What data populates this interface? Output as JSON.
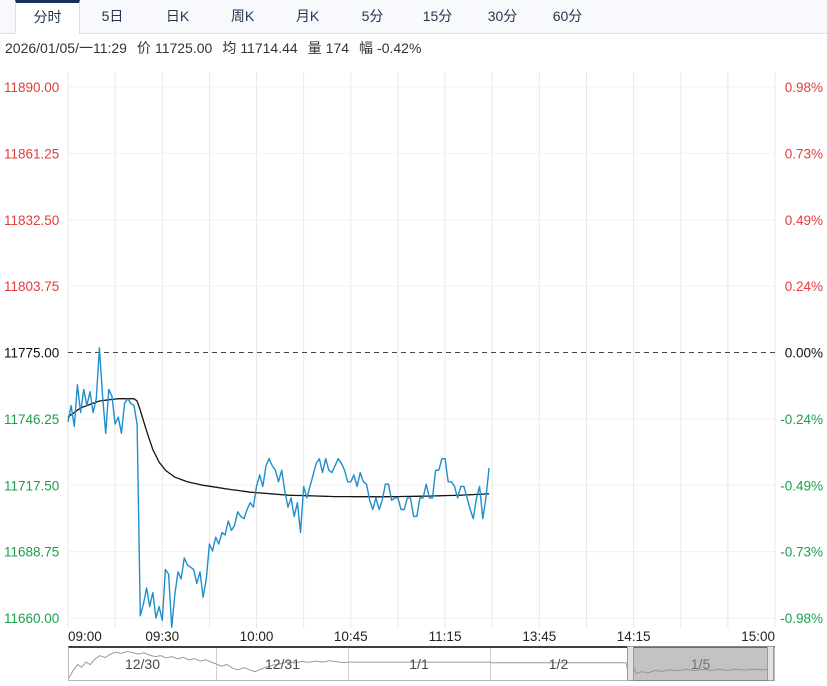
{
  "tabs": {
    "items": [
      {
        "label": "分时",
        "name": "tab-intraday",
        "active": true
      },
      {
        "label": "5日",
        "name": "tab-5day",
        "active": false
      },
      {
        "label": "日K",
        "name": "tab-daily-k",
        "active": false
      },
      {
        "label": "周K",
        "name": "tab-weekly-k",
        "active": false
      },
      {
        "label": "月K",
        "name": "tab-monthly-k",
        "active": false
      },
      {
        "label": "5分",
        "name": "tab-5min",
        "active": false
      },
      {
        "label": "15分",
        "name": "tab-15min",
        "active": false
      },
      {
        "label": "30分",
        "name": "tab-30min",
        "active": false
      },
      {
        "label": "60分",
        "name": "tab-60min",
        "active": false
      }
    ]
  },
  "info": {
    "datetime": "2026/01/05/一11:29",
    "fields": [
      {
        "label": "价",
        "value": "11725.00"
      },
      {
        "label": "均",
        "value": "11714.44"
      },
      {
        "label": "量",
        "value": "174"
      },
      {
        "label": "幅",
        "value": "-0.42%"
      }
    ]
  },
  "chart_data": {
    "type": "line",
    "title": "",
    "x_axis": {
      "session_minutes": 225,
      "minutes_per_point": 1,
      "gridline_every_min": 15,
      "labels": [
        {
          "text": "09:00",
          "min": 0
        },
        {
          "text": "09:30",
          "min": 30
        },
        {
          "text": "10:00",
          "min": 60
        },
        {
          "text": "10:45",
          "min": 90
        },
        {
          "text": "11:15",
          "min": 120
        },
        {
          "text": "13:45",
          "min": 150
        },
        {
          "text": "14:15",
          "min": 180
        },
        {
          "text": "15:00",
          "min": 225
        }
      ]
    },
    "y_axis": {
      "max": 11890.0,
      "min": 11660.0,
      "base": 11775.0,
      "left_labels": [
        "11890.00",
        "11861.25",
        "11832.50",
        "11803.75",
        "11775.00",
        "11746.25",
        "11717.50",
        "11688.75",
        "11660.00"
      ],
      "right_labels": [
        "0.98%",
        "0.73%",
        "0.49%",
        "0.24%",
        "0.00%",
        "-0.24%",
        "-0.49%",
        "-0.73%",
        "-0.98%"
      ],
      "up_color": "#e23c3c",
      "base_color": "#111111",
      "down_color": "#1aa14b"
    },
    "series": [
      {
        "name": "price",
        "color": "#1f8ecb",
        "values": [
          11745,
          11752,
          11743,
          11761,
          11749,
          11759,
          11752,
          11758,
          11749,
          11755,
          11777,
          11756,
          11740,
          11759,
          11756,
          11744,
          11747,
          11740,
          11753,
          11755,
          11753,
          11752,
          11744,
          11661,
          11666,
          11673,
          11665,
          11671,
          11660,
          11665,
          11659,
          11681,
          11679,
          11656,
          11670,
          11680,
          11677,
          11686,
          11683,
          11682,
          11681,
          11675,
          11680,
          11669,
          11677,
          11692,
          11689,
          11695,
          11692,
          11697,
          11696,
          11702,
          11698,
          11700,
          11706,
          11704,
          11703,
          11707,
          11710,
          11708,
          11717,
          11722,
          11717,
          11726,
          11729,
          11726,
          11724,
          11719,
          11724,
          11715,
          11708,
          11712,
          11704,
          11710,
          11697,
          11717,
          11712,
          11717,
          11722,
          11727,
          11729,
          11723,
          11729,
          11724,
          11723,
          11726,
          11729,
          11727,
          11724,
          11719,
          11719,
          11722,
          11717,
          11723,
          11719,
          11718,
          11711,
          11707,
          11712,
          11707,
          11711,
          11718,
          11718,
          11711,
          11712,
          11712,
          11707,
          11707,
          11712,
          11712,
          11704,
          11704,
          11712,
          11712,
          11718,
          11712,
          11712,
          11724,
          11724,
          11729,
          11729,
          11719,
          11719,
          11717,
          11712,
          11717,
          11717,
          11712,
          11707,
          11703,
          11712,
          11717,
          11703,
          11712,
          11725
        ]
      },
      {
        "name": "avg",
        "color": "#141414",
        "keypoints": [
          [
            0,
            11747
          ],
          [
            4,
            11751
          ],
          [
            10,
            11754
          ],
          [
            16,
            11755
          ],
          [
            21,
            11755
          ],
          [
            22,
            11754
          ],
          [
            23,
            11750
          ],
          [
            25,
            11741
          ],
          [
            27,
            11733
          ],
          [
            29,
            11727.5
          ],
          [
            31,
            11724
          ],
          [
            34,
            11721
          ],
          [
            38,
            11719
          ],
          [
            43,
            11717.5
          ],
          [
            50,
            11716
          ],
          [
            58,
            11714.5
          ],
          [
            70,
            11713.2
          ],
          [
            85,
            11712.6
          ],
          [
            100,
            11712.5
          ],
          [
            115,
            11712.8
          ],
          [
            125,
            11713.2
          ],
          [
            134,
            11713.8
          ]
        ]
      }
    ]
  },
  "navigator": {
    "sections": [
      {
        "label": "12/30",
        "start": 0.0,
        "end": 0.208,
        "selected": false
      },
      {
        "label": "12/31",
        "start": 0.208,
        "end": 0.396,
        "selected": false
      },
      {
        "label": "1/1",
        "start": 0.396,
        "end": 0.597,
        "selected": false
      },
      {
        "label": "1/2",
        "start": 0.597,
        "end": 0.792,
        "selected": false
      },
      {
        "label": "1/5",
        "start": 0.792,
        "end": 1.0,
        "selected": true
      }
    ],
    "sparkline_color": "#9a9a9a",
    "sparkline": [
      [
        0.0,
        0.93
      ],
      [
        0.006,
        0.7
      ],
      [
        0.012,
        0.52
      ],
      [
        0.018,
        0.6
      ],
      [
        0.024,
        0.44
      ],
      [
        0.03,
        0.52
      ],
      [
        0.037,
        0.34
      ],
      [
        0.044,
        0.24
      ],
      [
        0.051,
        0.3
      ],
      [
        0.058,
        0.2
      ],
      [
        0.066,
        0.13
      ],
      [
        0.074,
        0.17
      ],
      [
        0.082,
        0.11
      ],
      [
        0.09,
        0.14
      ],
      [
        0.098,
        0.19
      ],
      [
        0.106,
        0.15
      ],
      [
        0.114,
        0.22
      ],
      [
        0.122,
        0.27
      ],
      [
        0.13,
        0.24
      ],
      [
        0.138,
        0.31
      ],
      [
        0.146,
        0.27
      ],
      [
        0.154,
        0.34
      ],
      [
        0.162,
        0.29
      ],
      [
        0.17,
        0.37
      ],
      [
        0.178,
        0.33
      ],
      [
        0.186,
        0.41
      ],
      [
        0.194,
        0.37
      ],
      [
        0.202,
        0.44
      ],
      [
        0.209,
        0.5
      ],
      [
        0.216,
        0.57
      ],
      [
        0.224,
        0.52
      ],
      [
        0.232,
        0.63
      ],
      [
        0.24,
        0.68
      ],
      [
        0.248,
        0.61
      ],
      [
        0.256,
        0.68
      ],
      [
        0.264,
        0.74
      ],
      [
        0.272,
        0.66
      ],
      [
        0.281,
        0.59
      ],
      [
        0.29,
        0.53
      ],
      [
        0.3,
        0.49
      ],
      [
        0.31,
        0.44
      ],
      [
        0.32,
        0.47
      ],
      [
        0.33,
        0.42
      ],
      [
        0.34,
        0.45
      ],
      [
        0.35,
        0.41
      ],
      [
        0.36,
        0.44
      ],
      [
        0.37,
        0.4
      ],
      [
        0.38,
        0.43
      ],
      [
        0.39,
        0.46
      ],
      [
        0.397,
        0.44
      ],
      [
        0.597,
        0.44
      ],
      [
        0.6,
        0.46
      ],
      [
        0.79,
        0.46
      ],
      [
        0.794,
        0.85
      ],
      [
        0.8,
        0.55
      ],
      [
        0.805,
        0.8
      ],
      [
        0.813,
        0.74
      ],
      [
        0.821,
        0.78
      ],
      [
        0.831,
        0.7
      ],
      [
        0.841,
        0.73
      ],
      [
        0.852,
        0.68
      ],
      [
        0.863,
        0.71
      ],
      [
        0.875,
        0.67
      ],
      [
        0.887,
        0.7
      ],
      [
        0.899,
        0.67
      ],
      [
        0.911,
        0.7
      ],
      [
        0.923,
        0.67
      ],
      [
        0.935,
        0.7
      ],
      [
        0.947,
        0.66
      ],
      [
        0.959,
        0.69
      ],
      [
        0.971,
        0.66
      ],
      [
        0.983,
        0.68
      ],
      [
        1.0,
        0.66
      ]
    ]
  }
}
